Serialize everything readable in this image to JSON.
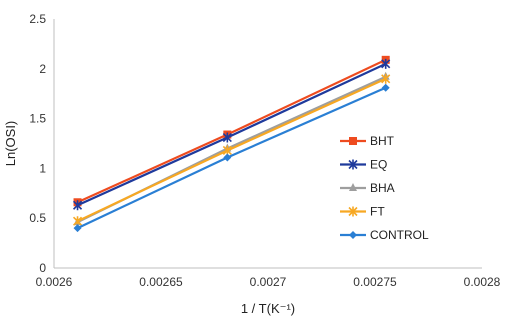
{
  "chart_data": {
    "type": "line",
    "title": "",
    "xlabel": "1 / T(K⁻¹)",
    "ylabel": "Ln(OSI)",
    "xlim": [
      0.0026,
      0.0028
    ],
    "ylim": [
      0,
      2.5
    ],
    "x_ticks": [
      0.0026,
      0.00265,
      0.0027,
      0.00275,
      0.0028
    ],
    "x_tick_labels": [
      "0.0026",
      "0.00265",
      "0.0027",
      "0.00275",
      "0.0028"
    ],
    "y_ticks": [
      0,
      0.5,
      1,
      1.5,
      2,
      2.5
    ],
    "y_tick_labels": [
      "0",
      "0.5",
      "1",
      "1.5",
      "2",
      "2.5"
    ],
    "grid": false,
    "legend_position": "right",
    "x": [
      0.002611,
      0.002681,
      0.002755
    ],
    "series": [
      {
        "name": "BHT",
        "color": "#ee4b1f",
        "marker": "square",
        "values": [
          0.66,
          1.34,
          2.09
        ]
      },
      {
        "name": "EQ",
        "color": "#1f3a9c",
        "marker": "x",
        "values": [
          0.63,
          1.31,
          2.05
        ]
      },
      {
        "name": "BHA",
        "color": "#9e9e9e",
        "marker": "triangle",
        "values": [
          0.46,
          1.2,
          1.92
        ]
      },
      {
        "name": "FT",
        "color": "#f7a823",
        "marker": "x",
        "values": [
          0.47,
          1.18,
          1.9
        ]
      },
      {
        "name": "CONTROL",
        "color": "#2a7fd4",
        "marker": "diamond",
        "values": [
          0.4,
          1.11,
          1.81
        ]
      }
    ]
  }
}
